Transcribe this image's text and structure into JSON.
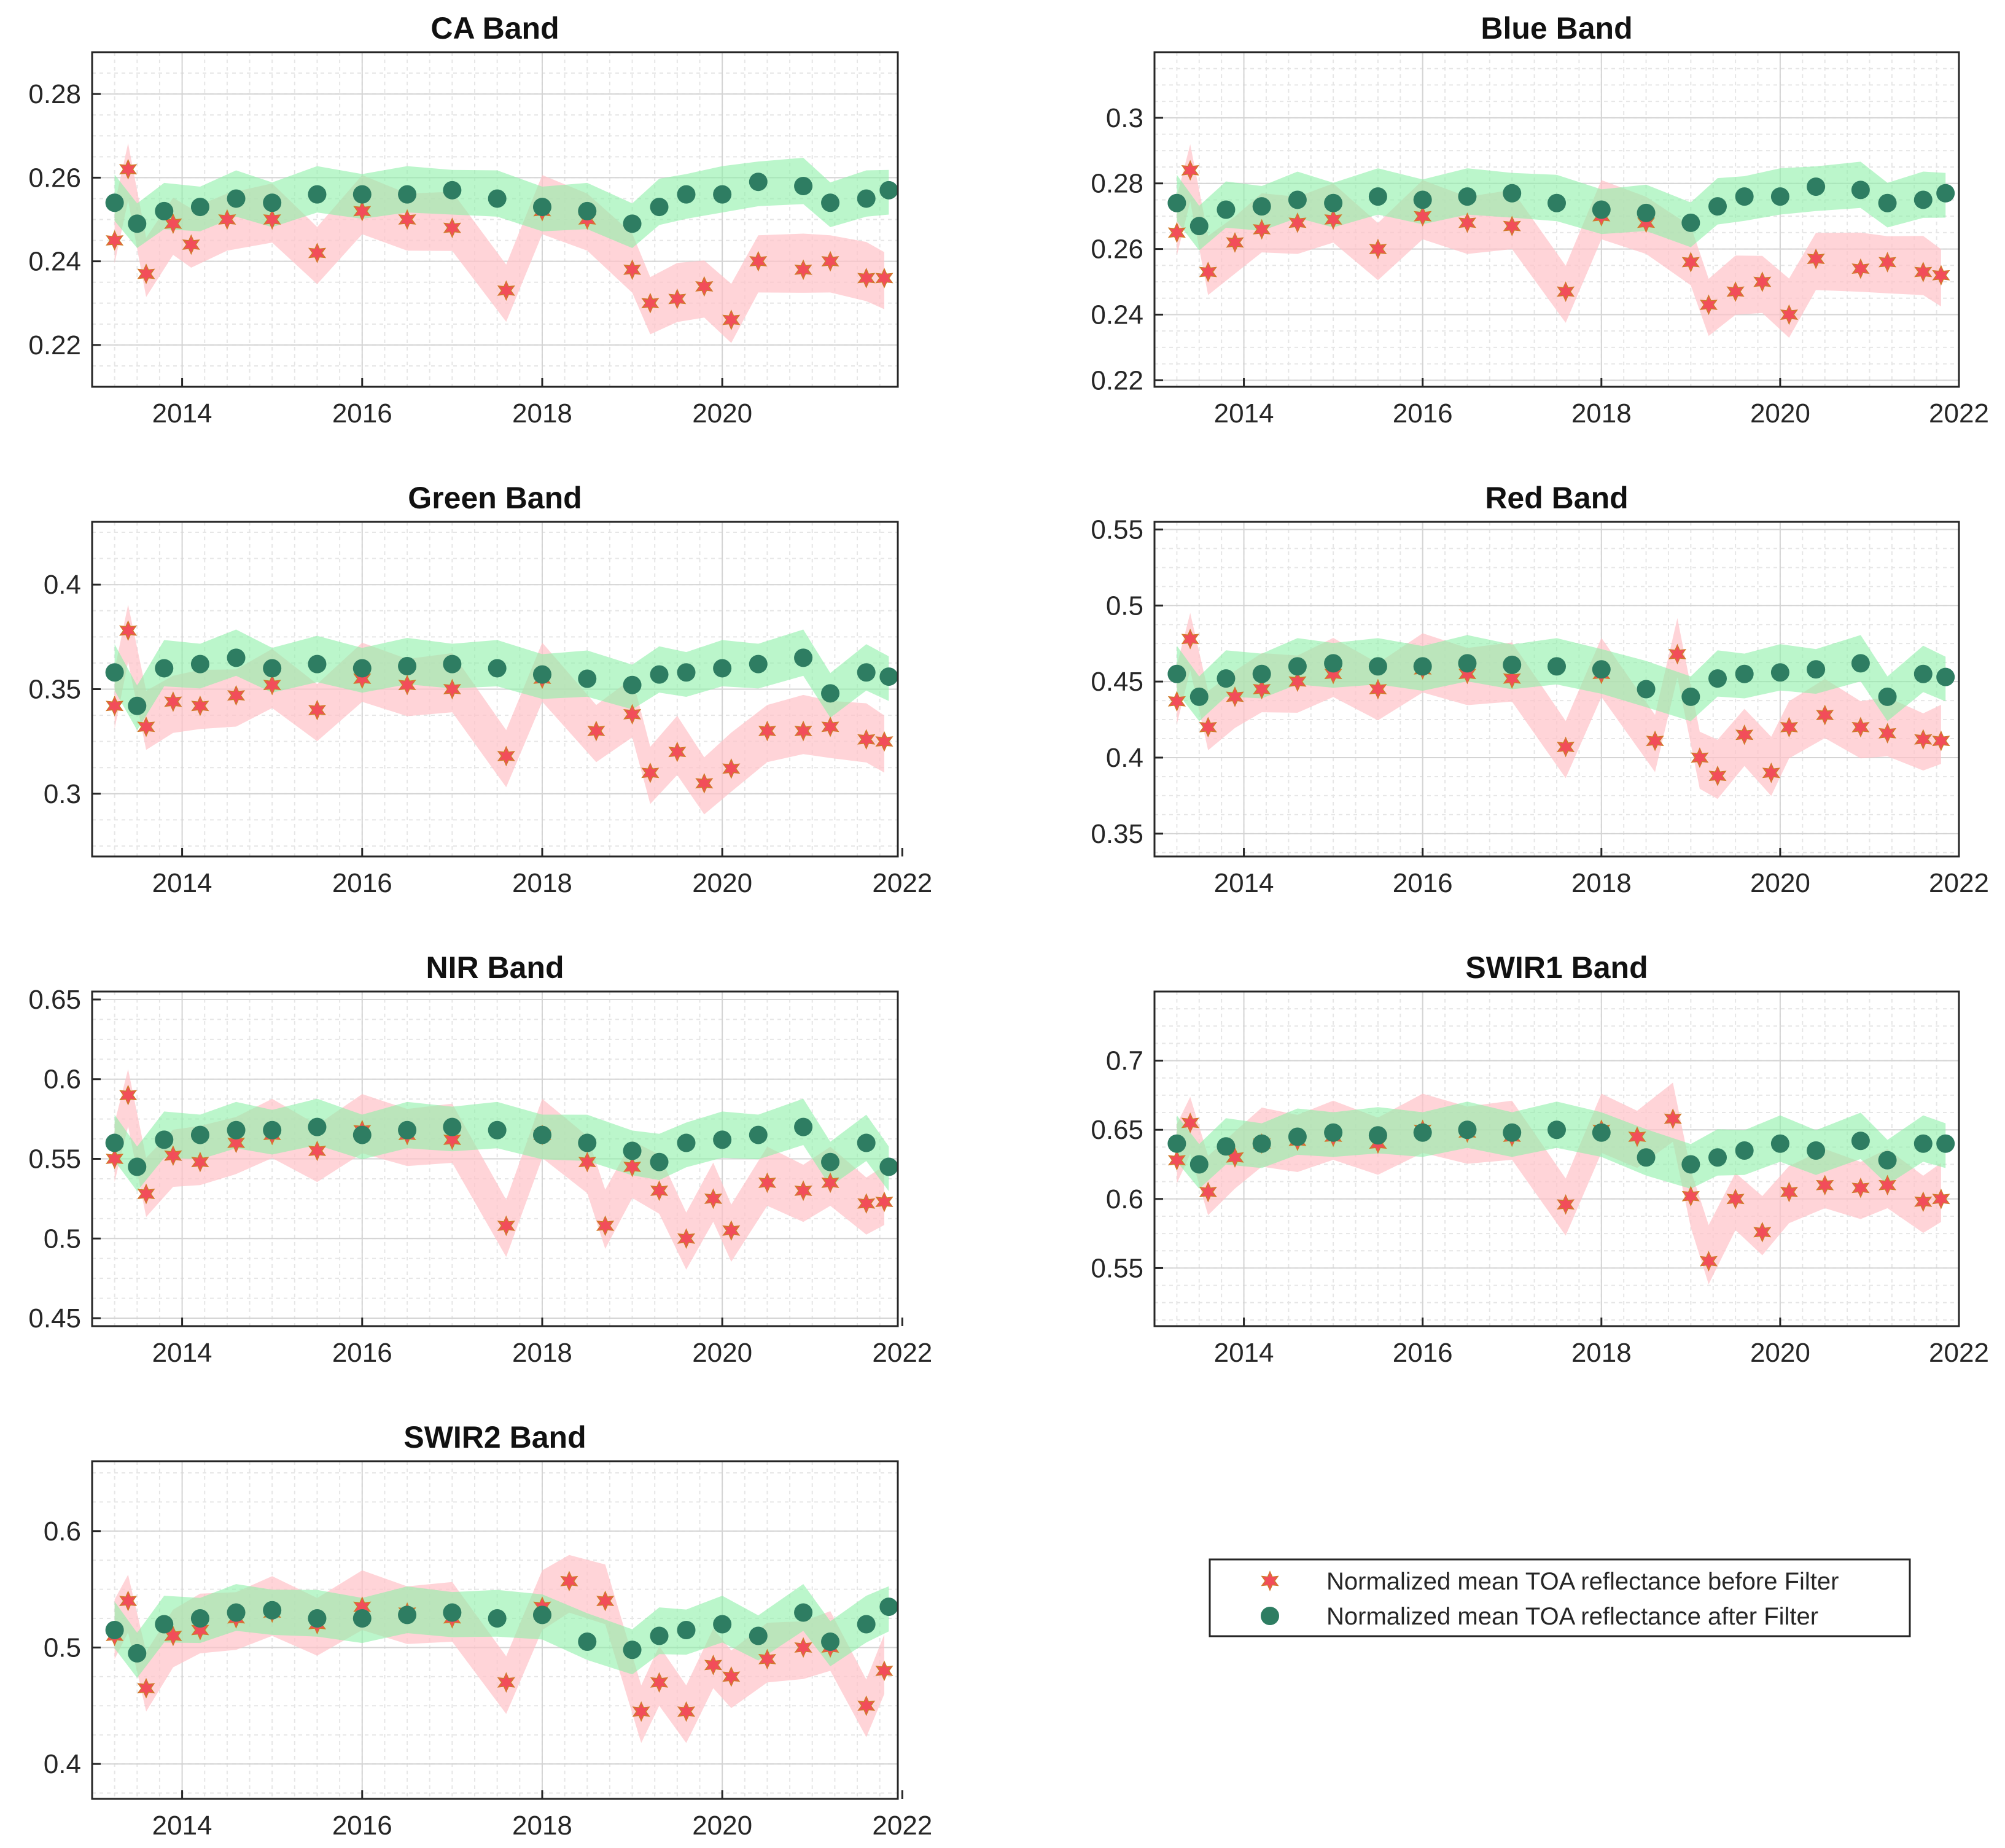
{
  "colors": {
    "before": "#f24d5a",
    "before_band": "#ffc2c8",
    "after": "#2e7d62",
    "after_band": "#8ef0a8",
    "before_edge": "#d07a2a"
  },
  "legend": {
    "before_label": "Normalized mean TOA reflectance before Filter",
    "after_label": "Normalized mean TOA reflectance after Filter"
  },
  "chart_data": [
    {
      "type": "scatter",
      "title": "CA Band",
      "xlim": [
        2013.0,
        2021.95
      ],
      "ylim": [
        0.21,
        0.29
      ],
      "xticks": [
        2014,
        2016,
        2018,
        2020
      ],
      "xtick_labels": [
        "2014",
        "2016",
        "2018",
        "2020"
      ],
      "yticks": [
        0.22,
        0.24,
        0.26,
        0.28
      ],
      "ytick_labels": [
        "0.22",
        "0.24",
        "0.26",
        "0.28"
      ],
      "series": [
        {
          "name": "Normalized mean TOA reflectance before Filter",
          "x": [
            2013.25,
            2013.4,
            2013.6,
            2013.9,
            2014.1,
            2014.5,
            2015.0,
            2015.5,
            2016.0,
            2016.5,
            2017.0,
            2017.6,
            2018.0,
            2018.5,
            2019.0,
            2019.2,
            2019.5,
            2019.8,
            2020.1,
            2020.4,
            2020.9,
            2021.2,
            2021.6,
            2021.8
          ],
          "values": [
            0.245,
            0.262,
            0.237,
            0.249,
            0.244,
            0.25,
            0.25,
            0.242,
            0.252,
            0.25,
            0.248,
            0.233,
            0.252,
            0.25,
            0.238,
            0.23,
            0.231,
            0.234,
            0.226,
            0.24,
            0.238,
            0.24,
            0.236,
            0.236
          ]
        },
        {
          "name": "Normalized mean TOA reflectance after Filter",
          "x": [
            2013.25,
            2013.5,
            2013.8,
            2014.2,
            2014.6,
            2015.0,
            2015.5,
            2016.0,
            2016.5,
            2017.0,
            2017.5,
            2018.0,
            2018.5,
            2019.0,
            2019.3,
            2019.6,
            2020.0,
            2020.4,
            2020.9,
            2021.2,
            2021.6,
            2021.85
          ],
          "values": [
            0.254,
            0.249,
            0.252,
            0.253,
            0.255,
            0.254,
            0.256,
            0.256,
            0.256,
            0.257,
            0.255,
            0.253,
            0.252,
            0.249,
            0.253,
            0.256,
            0.256,
            0.259,
            0.258,
            0.254,
            0.255,
            0.257
          ]
        }
      ]
    },
    {
      "type": "scatter",
      "title": "Blue Band",
      "xlim": [
        2013.0,
        2022.0
      ],
      "ylim": [
        0.218,
        0.32
      ],
      "xticks": [
        2014,
        2016,
        2018,
        2020,
        2022
      ],
      "xtick_labels": [
        "2014",
        "2016",
        "2018",
        "2020",
        "2022"
      ],
      "yticks": [
        0.22,
        0.24,
        0.26,
        0.28,
        0.3
      ],
      "ytick_labels": [
        "0.22",
        "0.24",
        "0.26",
        "0.28",
        "0.3"
      ],
      "series": [
        {
          "name": "Normalized mean TOA reflectance before Filter",
          "x": [
            2013.25,
            2013.4,
            2013.6,
            2013.9,
            2014.2,
            2014.6,
            2015.0,
            2015.5,
            2016.0,
            2016.5,
            2017.0,
            2017.6,
            2018.0,
            2018.5,
            2019.0,
            2019.2,
            2019.5,
            2019.8,
            2020.1,
            2020.4,
            2020.9,
            2021.2,
            2021.6,
            2021.8
          ],
          "values": [
            0.265,
            0.284,
            0.253,
            0.262,
            0.266,
            0.268,
            0.269,
            0.26,
            0.27,
            0.268,
            0.267,
            0.247,
            0.27,
            0.268,
            0.256,
            0.243,
            0.247,
            0.25,
            0.24,
            0.257,
            0.254,
            0.256,
            0.253,
            0.252
          ]
        },
        {
          "name": "Normalized mean TOA reflectance after Filter",
          "x": [
            2013.25,
            2013.5,
            2013.8,
            2014.2,
            2014.6,
            2015.0,
            2015.5,
            2016.0,
            2016.5,
            2017.0,
            2017.5,
            2018.0,
            2018.5,
            2019.0,
            2019.3,
            2019.6,
            2020.0,
            2020.4,
            2020.9,
            2021.2,
            2021.6,
            2021.85
          ],
          "values": [
            0.274,
            0.267,
            0.272,
            0.273,
            0.275,
            0.274,
            0.276,
            0.275,
            0.276,
            0.277,
            0.274,
            0.272,
            0.271,
            0.268,
            0.273,
            0.276,
            0.276,
            0.279,
            0.278,
            0.274,
            0.275,
            0.277
          ]
        }
      ]
    },
    {
      "type": "scatter",
      "title": "Green Band",
      "xlim": [
        2013.0,
        2021.95
      ],
      "ylim": [
        0.27,
        0.43
      ],
      "xticks": [
        2014,
        2016,
        2018,
        2020,
        2022
      ],
      "xtick_labels": [
        "2014",
        "2016",
        "2018",
        "2020",
        "2022"
      ],
      "yticks": [
        0.3,
        0.35,
        0.4
      ],
      "ytick_labels": [
        "0.3",
        "0.35",
        "0.4"
      ],
      "series": [
        {
          "name": "Normalized mean TOA reflectance before Filter",
          "x": [
            2013.25,
            2013.4,
            2013.6,
            2013.9,
            2014.2,
            2014.6,
            2015.0,
            2015.5,
            2016.0,
            2016.5,
            2017.0,
            2017.6,
            2018.0,
            2018.6,
            2019.0,
            2019.2,
            2019.5,
            2019.8,
            2020.1,
            2020.5,
            2020.9,
            2021.2,
            2021.6,
            2021.8
          ],
          "values": [
            0.342,
            0.378,
            0.332,
            0.344,
            0.342,
            0.347,
            0.352,
            0.34,
            0.355,
            0.352,
            0.35,
            0.318,
            0.355,
            0.33,
            0.338,
            0.31,
            0.32,
            0.305,
            0.312,
            0.33,
            0.33,
            0.332,
            0.326,
            0.325
          ]
        },
        {
          "name": "Normalized mean TOA reflectance after Filter",
          "x": [
            2013.25,
            2013.5,
            2013.8,
            2014.2,
            2014.6,
            2015.0,
            2015.5,
            2016.0,
            2016.5,
            2017.0,
            2017.5,
            2018.0,
            2018.5,
            2019.0,
            2019.3,
            2019.6,
            2020.0,
            2020.4,
            2020.9,
            2021.2,
            2021.6,
            2021.85
          ],
          "values": [
            0.358,
            0.342,
            0.36,
            0.362,
            0.365,
            0.36,
            0.362,
            0.36,
            0.361,
            0.362,
            0.36,
            0.357,
            0.355,
            0.352,
            0.357,
            0.358,
            0.36,
            0.362,
            0.365,
            0.348,
            0.358,
            0.356
          ]
        }
      ]
    },
    {
      "type": "scatter",
      "title": "Red Band",
      "xlim": [
        2013.0,
        2022.0
      ],
      "ylim": [
        0.335,
        0.555
      ],
      "xticks": [
        2014,
        2016,
        2018,
        2020,
        2022
      ],
      "xtick_labels": [
        "2014",
        "2016",
        "2018",
        "2020",
        "2022"
      ],
      "yticks": [
        0.35,
        0.4,
        0.45,
        0.5,
        0.55
      ],
      "ytick_labels": [
        "0.35",
        "0.4",
        "0.45",
        "0.5",
        "0.55"
      ],
      "series": [
        {
          "name": "Normalized mean TOA reflectance before Filter",
          "x": [
            2013.25,
            2013.4,
            2013.6,
            2013.9,
            2014.2,
            2014.6,
            2015.0,
            2015.5,
            2016.0,
            2016.5,
            2017.0,
            2017.6,
            2018.0,
            2018.6,
            2018.85,
            2019.1,
            2019.3,
            2019.6,
            2019.9,
            2020.1,
            2020.5,
            2020.9,
            2021.2,
            2021.6,
            2021.8
          ],
          "values": [
            0.437,
            0.478,
            0.42,
            0.44,
            0.445,
            0.45,
            0.455,
            0.445,
            0.458,
            0.455,
            0.452,
            0.407,
            0.455,
            0.411,
            0.468,
            0.4,
            0.388,
            0.415,
            0.39,
            0.42,
            0.428,
            0.42,
            0.416,
            0.412,
            0.411
          ]
        },
        {
          "name": "Normalized mean TOA reflectance after Filter",
          "x": [
            2013.25,
            2013.5,
            2013.8,
            2014.2,
            2014.6,
            2015.0,
            2015.5,
            2016.0,
            2016.5,
            2017.0,
            2017.5,
            2018.0,
            2018.5,
            2019.0,
            2019.3,
            2019.6,
            2020.0,
            2020.4,
            2020.9,
            2021.2,
            2021.6,
            2021.85
          ],
          "values": [
            0.455,
            0.44,
            0.452,
            0.455,
            0.46,
            0.462,
            0.46,
            0.46,
            0.462,
            0.461,
            0.46,
            0.458,
            0.445,
            0.44,
            0.452,
            0.455,
            0.456,
            0.458,
            0.462,
            0.44,
            0.455,
            0.453
          ]
        }
      ]
    },
    {
      "type": "scatter",
      "title": "NIR Band",
      "xlim": [
        2013.0,
        2021.95
      ],
      "ylim": [
        0.445,
        0.655
      ],
      "xticks": [
        2014,
        2016,
        2018,
        2020,
        2022
      ],
      "xtick_labels": [
        "2014",
        "2016",
        "2018",
        "2020",
        "2022"
      ],
      "yticks": [
        0.45,
        0.5,
        0.55,
        0.6,
        0.65
      ],
      "ytick_labels": [
        "0.45",
        "0.5",
        "0.55",
        "0.6",
        "0.65"
      ],
      "series": [
        {
          "name": "Normalized mean TOA reflectance before Filter",
          "x": [
            2013.25,
            2013.4,
            2013.6,
            2013.9,
            2014.2,
            2014.6,
            2015.0,
            2015.5,
            2016.0,
            2016.5,
            2017.0,
            2017.6,
            2018.0,
            2018.5,
            2018.7,
            2019.0,
            2019.3,
            2019.6,
            2019.9,
            2020.1,
            2020.5,
            2020.9,
            2021.2,
            2021.6,
            2021.8
          ],
          "values": [
            0.55,
            0.59,
            0.528,
            0.552,
            0.548,
            0.56,
            0.565,
            0.555,
            0.568,
            0.565,
            0.562,
            0.508,
            0.565,
            0.548,
            0.508,
            0.545,
            0.53,
            0.5,
            0.525,
            0.505,
            0.535,
            0.53,
            0.535,
            0.522,
            0.523
          ]
        },
        {
          "name": "Normalized mean TOA reflectance after Filter",
          "x": [
            2013.25,
            2013.5,
            2013.8,
            2014.2,
            2014.6,
            2015.0,
            2015.5,
            2016.0,
            2016.5,
            2017.0,
            2017.5,
            2018.0,
            2018.5,
            2019.0,
            2019.3,
            2019.6,
            2020.0,
            2020.4,
            2020.9,
            2021.2,
            2021.6,
            2021.85
          ],
          "values": [
            0.56,
            0.545,
            0.562,
            0.565,
            0.568,
            0.568,
            0.57,
            0.565,
            0.568,
            0.57,
            0.568,
            0.565,
            0.56,
            0.555,
            0.548,
            0.56,
            0.562,
            0.565,
            0.57,
            0.548,
            0.56,
            0.545
          ]
        }
      ]
    },
    {
      "type": "scatter",
      "title": "SWIR1 Band",
      "xlim": [
        2013.0,
        2022.0
      ],
      "ylim": [
        0.508,
        0.75
      ],
      "xticks": [
        2014,
        2016,
        2018,
        2020,
        2022
      ],
      "xtick_labels": [
        "2014",
        "2016",
        "2018",
        "2020",
        "2022"
      ],
      "yticks": [
        0.55,
        0.6,
        0.65,
        0.7
      ],
      "ytick_labels": [
        "0.55",
        "0.6",
        "0.65",
        "0.7"
      ],
      "series": [
        {
          "name": "Normalized mean TOA reflectance before Filter",
          "x": [
            2013.25,
            2013.4,
            2013.6,
            2013.9,
            2014.2,
            2014.6,
            2015.0,
            2015.5,
            2016.0,
            2016.5,
            2017.0,
            2017.6,
            2018.0,
            2018.4,
            2018.8,
            2019.0,
            2019.2,
            2019.5,
            2019.8,
            2020.1,
            2020.5,
            2020.9,
            2021.2,
            2021.6,
            2021.8
          ],
          "values": [
            0.628,
            0.655,
            0.605,
            0.63,
            0.64,
            0.642,
            0.645,
            0.64,
            0.65,
            0.648,
            0.645,
            0.596,
            0.65,
            0.645,
            0.658,
            0.602,
            0.555,
            0.6,
            0.576,
            0.605,
            0.61,
            0.608,
            0.61,
            0.598,
            0.6
          ]
        },
        {
          "name": "Normalized mean TOA reflectance after Filter",
          "x": [
            2013.25,
            2013.5,
            2013.8,
            2014.2,
            2014.6,
            2015.0,
            2015.5,
            2016.0,
            2016.5,
            2017.0,
            2017.5,
            2018.0,
            2018.5,
            2019.0,
            2019.3,
            2019.6,
            2020.0,
            2020.4,
            2020.9,
            2021.2,
            2021.6,
            2021.85
          ],
          "values": [
            0.64,
            0.625,
            0.638,
            0.64,
            0.645,
            0.648,
            0.646,
            0.648,
            0.65,
            0.648,
            0.65,
            0.648,
            0.63,
            0.625,
            0.63,
            0.635,
            0.64,
            0.635,
            0.642,
            0.628,
            0.64,
            0.64
          ]
        }
      ]
    },
    {
      "type": "scatter",
      "title": "SWIR2 Band",
      "xlim": [
        2013.0,
        2021.95
      ],
      "ylim": [
        0.37,
        0.66
      ],
      "xticks": [
        2014,
        2016,
        2018,
        2020,
        2022
      ],
      "xtick_labels": [
        "2014",
        "2016",
        "2018",
        "2020",
        "2022"
      ],
      "yticks": [
        0.4,
        0.5,
        0.6
      ],
      "ytick_labels": [
        "0.4",
        "0.5",
        "0.6"
      ],
      "series": [
        {
          "name": "Normalized mean TOA reflectance before Filter",
          "x": [
            2013.25,
            2013.4,
            2013.6,
            2013.9,
            2014.2,
            2014.6,
            2015.0,
            2015.5,
            2016.0,
            2016.5,
            2017.0,
            2017.6,
            2018.0,
            2018.3,
            2018.7,
            2019.1,
            2019.3,
            2019.6,
            2019.9,
            2020.1,
            2020.5,
            2020.9,
            2021.2,
            2021.6,
            2021.8
          ],
          "values": [
            0.51,
            0.54,
            0.465,
            0.51,
            0.515,
            0.525,
            0.53,
            0.52,
            0.535,
            0.53,
            0.525,
            0.47,
            0.535,
            0.557,
            0.54,
            0.445,
            0.47,
            0.445,
            0.485,
            0.475,
            0.49,
            0.5,
            0.5,
            0.45,
            0.48
          ]
        },
        {
          "name": "Normalized mean TOA reflectance after Filter",
          "x": [
            2013.25,
            2013.5,
            2013.8,
            2014.2,
            2014.6,
            2015.0,
            2015.5,
            2016.0,
            2016.5,
            2017.0,
            2017.5,
            2018.0,
            2018.5,
            2019.0,
            2019.3,
            2019.6,
            2020.0,
            2020.4,
            2020.9,
            2021.2,
            2021.6,
            2021.85
          ],
          "values": [
            0.515,
            0.495,
            0.52,
            0.525,
            0.53,
            0.532,
            0.525,
            0.525,
            0.528,
            0.53,
            0.525,
            0.528,
            0.505,
            0.498,
            0.51,
            0.515,
            0.52,
            0.51,
            0.53,
            0.505,
            0.52,
            0.535
          ]
        }
      ]
    }
  ]
}
